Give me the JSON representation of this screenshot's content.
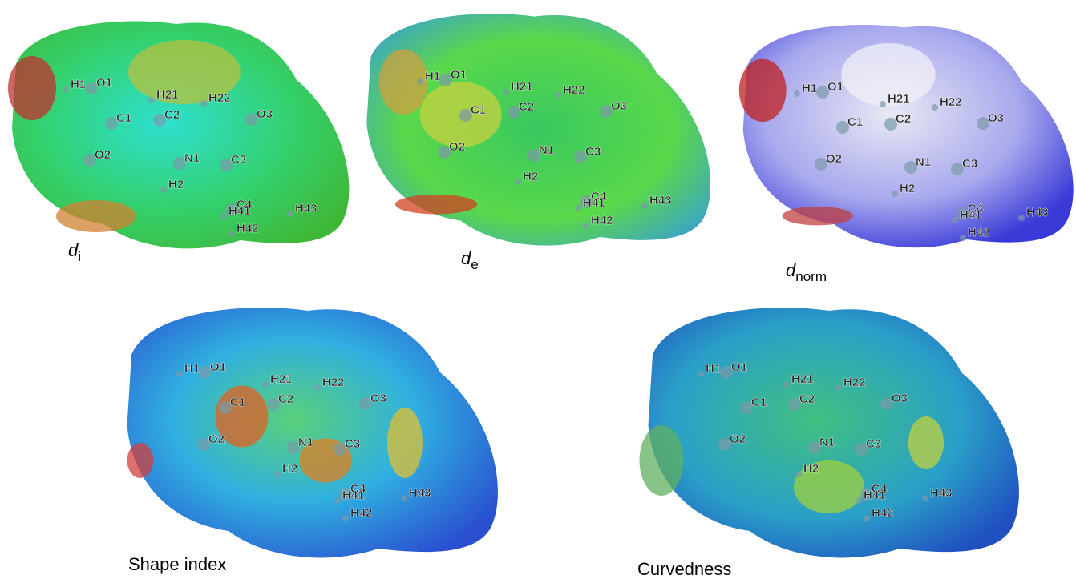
{
  "atoms": [
    "H1",
    "O1",
    "H21",
    "H22",
    "C1",
    "C2",
    "O3",
    "O2",
    "N1",
    "C3",
    "H2",
    "C4",
    "H41",
    "H43",
    "H42"
  ],
  "panels": [
    {
      "caption": {
        "symbol": "d",
        "subscript": "i"
      }
    },
    {
      "caption": {
        "symbol": "d",
        "subscript": "e"
      }
    },
    {
      "caption": {
        "symbol": "d",
        "subscript": "norm"
      }
    },
    {
      "caption": {
        "text": "Shape index"
      }
    },
    {
      "caption": {
        "text": "Curvedness"
      }
    }
  ]
}
